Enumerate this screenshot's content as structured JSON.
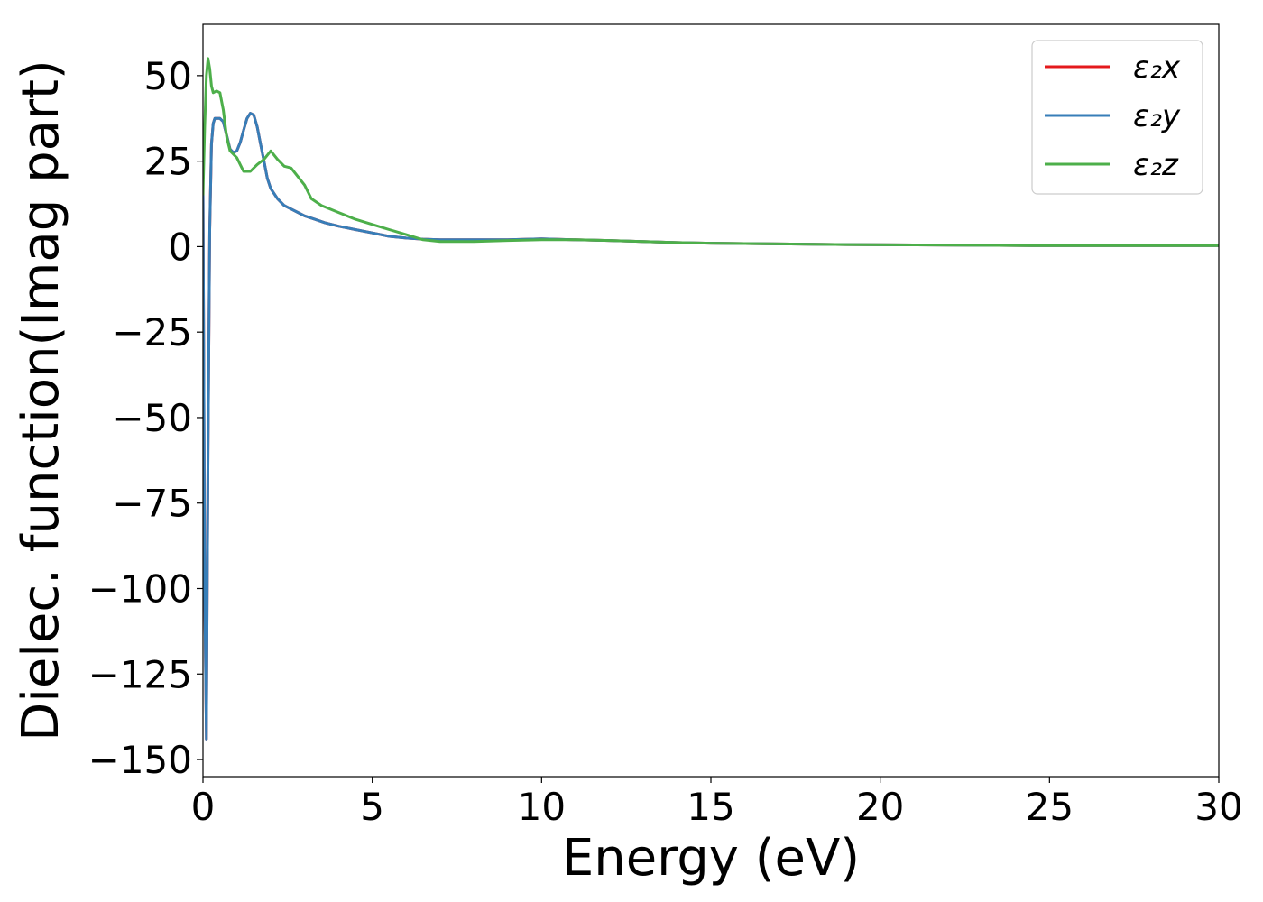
{
  "chart_data": {
    "type": "line",
    "xlabel": "Energy (eV)",
    "ylabel": "Dielec. function(Imag part)",
    "xlim": [
      0,
      30
    ],
    "ylim": [
      -155,
      65
    ],
    "xticks": [
      0,
      5,
      10,
      15,
      20,
      25,
      30
    ],
    "xtick_labels": [
      "0",
      "5",
      "10",
      "15",
      "20",
      "25",
      "30"
    ],
    "yticks": [
      50,
      25,
      0,
      -25,
      -50,
      -75,
      -100,
      -125,
      -150
    ],
    "ytick_labels": [
      "50",
      "25",
      "0",
      "−25",
      "−50",
      "−75",
      "−100",
      "−125",
      "−150"
    ],
    "grid": false,
    "legend_position": "upper right",
    "series": [
      {
        "name": "ε₂x",
        "color": "#e41a1c",
        "x": [
          0.0,
          0.05,
          0.1,
          0.15,
          0.2,
          0.25,
          0.3,
          0.35,
          0.4,
          0.5,
          0.6,
          0.7,
          0.8,
          0.9,
          1.0,
          1.1,
          1.2,
          1.3,
          1.4,
          1.5,
          1.6,
          1.7,
          1.8,
          1.9,
          2.0,
          2.2,
          2.4,
          2.6,
          2.8,
          3.0,
          3.3,
          3.6,
          4.0,
          4.5,
          5.0,
          5.5,
          6.0,
          6.5,
          7.0,
          8.0,
          9.0,
          10.0,
          11.0,
          12.0,
          13.0,
          14.0,
          15.0,
          17.0,
          19.0,
          21.0,
          23.0,
          25.0,
          27.0,
          30.0
        ],
        "y": [
          20,
          -100,
          -144,
          -60,
          5,
          30,
          36,
          37.5,
          37.5,
          37.5,
          36.5,
          32.5,
          28.5,
          27.5,
          28,
          30.5,
          34,
          37.5,
          39,
          38.5,
          35,
          30,
          25,
          20,
          17,
          14,
          12,
          11,
          10,
          9,
          8,
          7,
          6,
          5,
          4,
          3,
          2.5,
          2.2,
          2,
          2,
          2,
          2.3,
          2,
          1.8,
          1.5,
          1.2,
          1,
          0.8,
          0.6,
          0.5,
          0.4,
          0.3,
          0.3,
          0.3
        ]
      },
      {
        "name": "ε₂y",
        "color": "#377eb8",
        "x": [
          0.0,
          0.05,
          0.1,
          0.15,
          0.2,
          0.25,
          0.3,
          0.35,
          0.4,
          0.5,
          0.6,
          0.7,
          0.8,
          0.9,
          1.0,
          1.1,
          1.2,
          1.3,
          1.4,
          1.5,
          1.6,
          1.7,
          1.8,
          1.9,
          2.0,
          2.2,
          2.4,
          2.6,
          2.8,
          3.0,
          3.3,
          3.6,
          4.0,
          4.5,
          5.0,
          5.5,
          6.0,
          6.5,
          7.0,
          8.0,
          9.0,
          10.0,
          11.0,
          12.0,
          13.0,
          14.0,
          15.0,
          17.0,
          19.0,
          21.0,
          23.0,
          25.0,
          27.0,
          30.0
        ],
        "y": [
          20,
          -100,
          -144,
          -60,
          5,
          30,
          36,
          37.5,
          37.5,
          37.5,
          36.5,
          32.5,
          28.5,
          27.5,
          28,
          30.5,
          34,
          37.5,
          39,
          38.5,
          35,
          30,
          25,
          20,
          17,
          14,
          12,
          11,
          10,
          9,
          8,
          7,
          6,
          5,
          4,
          3,
          2.5,
          2.2,
          2,
          2,
          2,
          2.3,
          2,
          1.8,
          1.5,
          1.2,
          1,
          0.8,
          0.6,
          0.5,
          0.4,
          0.3,
          0.3,
          0.3
        ]
      },
      {
        "name": "ε₂z",
        "color": "#4daf4a",
        "x": [
          0.0,
          0.05,
          0.1,
          0.15,
          0.2,
          0.25,
          0.3,
          0.4,
          0.5,
          0.6,
          0.7,
          0.8,
          0.9,
          1.0,
          1.2,
          1.4,
          1.6,
          1.8,
          2.0,
          2.2,
          2.4,
          2.6,
          2.8,
          3.0,
          3.2,
          3.5,
          4.0,
          4.5,
          5.0,
          5.5,
          6.0,
          6.5,
          7.0,
          8.0,
          9.0,
          10.0,
          11.0,
          12.0,
          13.0,
          14.0,
          15.0,
          17.0,
          19.0,
          21.0,
          23.0,
          25.0,
          27.0,
          30.0
        ],
        "y": [
          15,
          35,
          50,
          55,
          52,
          47,
          45,
          45.5,
          45,
          40,
          32,
          28,
          27,
          26,
          22,
          22,
          24,
          25.5,
          28,
          25.5,
          23.5,
          23,
          20.5,
          18,
          14,
          12,
          10,
          8,
          6.5,
          5,
          3.5,
          2,
          1.5,
          1.5,
          1.8,
          2,
          2,
          1.8,
          1.5,
          1.2,
          1,
          0.8,
          0.6,
          0.5,
          0.4,
          0.3,
          0.3,
          0.3
        ]
      }
    ]
  }
}
